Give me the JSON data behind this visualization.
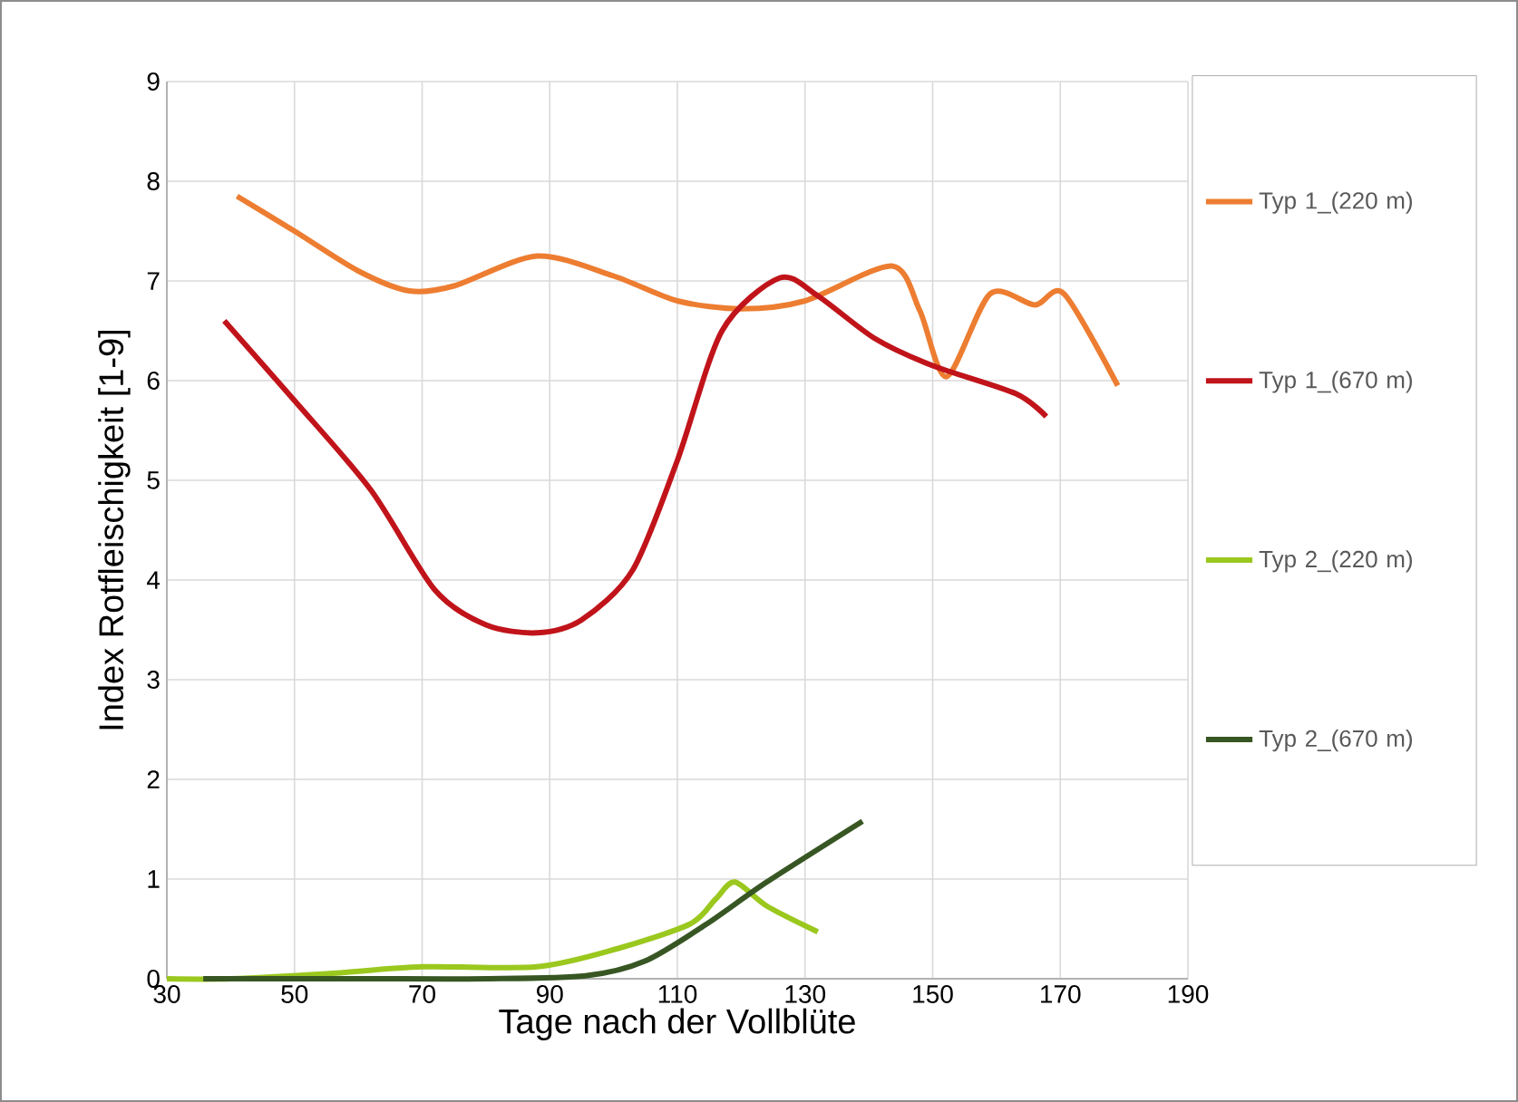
{
  "chart_data": {
    "type": "line",
    "xlabel": "Tage nach der Vollblüte",
    "ylabel": "Index Rotfleischigkeit [1-9]",
    "xlim": [
      30,
      190
    ],
    "xticks": [
      30,
      50,
      70,
      90,
      110,
      130,
      150,
      170,
      190
    ],
    "ylim": [
      0,
      9
    ],
    "yticks": [
      0,
      1,
      2,
      3,
      4,
      5,
      6,
      7,
      8,
      9
    ],
    "grid": true,
    "legend": "right",
    "line_style": "solid",
    "marker": "none",
    "series": [
      {
        "name": "Typ 1_(220 m)",
        "color": "#ed7d31",
        "x": [
          41,
          50,
          60,
          68,
          75,
          88,
          100,
          110,
          120,
          130,
          143.6,
          148,
          152.2,
          159,
          166,
          170.6,
          179
        ],
        "values": [
          7.85,
          7.5,
          7.1,
          6.9,
          6.95,
          7.25,
          7.05,
          6.8,
          6.72,
          6.8,
          7.15,
          6.7,
          6.04,
          6.87,
          6.76,
          6.87,
          5.95
        ]
      },
      {
        "name": "Typ 1_(670 m)",
        "color": "#c0141a",
        "x": [
          39,
          50,
          62,
          72,
          80,
          88,
          95,
          103,
          110,
          117,
          126,
          132,
          141,
          150,
          163,
          167.8
        ],
        "values": [
          6.6,
          5.8,
          4.9,
          3.9,
          3.55,
          3.47,
          3.6,
          4.1,
          5.2,
          6.5,
          7.03,
          6.85,
          6.42,
          6.15,
          5.87,
          5.64
        ]
      },
      {
        "name": "Typ 2_(220 m)",
        "color": "#9bc81e",
        "x": [
          30,
          40,
          55,
          70,
          88,
          100.5,
          112,
          116,
          119,
          124,
          132
        ],
        "values": [
          0,
          0,
          0.05,
          0.12,
          0.12,
          0.3,
          0.55,
          0.8,
          0.97,
          0.73,
          0.47
        ]
      },
      {
        "name": "Typ 2_(670 m)",
        "color": "#375623",
        "x": [
          35.7,
          60,
          80,
          95.6,
          105,
          114.6,
          124,
          139
        ],
        "values": [
          0,
          0,
          0,
          0.03,
          0.18,
          0.55,
          0.97,
          1.58
        ]
      }
    ]
  }
}
